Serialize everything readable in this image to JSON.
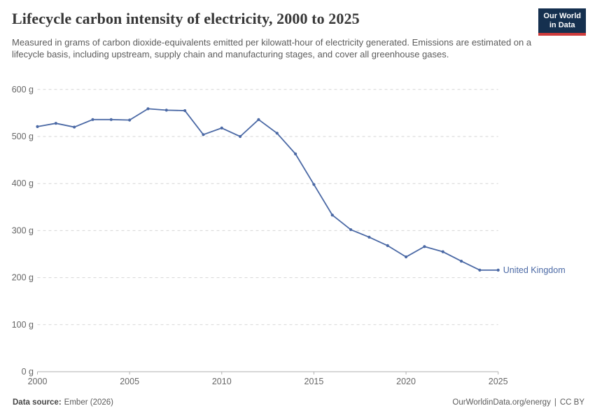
{
  "header": {
    "title": "Lifecycle carbon intensity of electricity, 2000 to 2025",
    "subtitle": "Measured in grams of carbon dioxide-equivalents emitted per kilowatt-hour of electricity generated. Emissions are estimated on a lifecycle basis, including upstream, supply chain and manufacturing stages, and cover all greenhouse gases.",
    "logo_line1": "Our World",
    "logo_line2": "in Data",
    "logo_bg_color": "#15304f",
    "logo_accent_color": "#ce3b3b"
  },
  "chart_data": {
    "type": "line",
    "title": "Lifecycle carbon intensity of electricity, 2000 to 2025",
    "xlabel": "",
    "ylabel": "",
    "xlim": [
      2000,
      2025
    ],
    "ylim": [
      0,
      600
    ],
    "x_ticks": [
      2000,
      2005,
      2010,
      2015,
      2020,
      2025
    ],
    "y_ticks": [
      0,
      100,
      200,
      300,
      400,
      500,
      600
    ],
    "y_tick_suffix": " g",
    "grid": "horizontal-dashed",
    "legend_position": "end-of-line-label",
    "colors": {
      "grid": "#d6d6d6",
      "axis": "#afafaf",
      "tick_text": "#666666"
    },
    "x": [
      2000,
      2001,
      2002,
      2003,
      2004,
      2005,
      2006,
      2007,
      2008,
      2009,
      2010,
      2011,
      2012,
      2013,
      2014,
      2015,
      2016,
      2017,
      2018,
      2019,
      2020,
      2021,
      2022,
      2023,
      2024,
      2025
    ],
    "series": [
      {
        "name": "United Kingdom",
        "color": "#4B69A5",
        "values": [
          521,
          528,
          520,
          536,
          536,
          535,
          559,
          556,
          555,
          504,
          518,
          500,
          536,
          507,
          463,
          398,
          333,
          302,
          286,
          268,
          244,
          266,
          255,
          235,
          216,
          216
        ]
      }
    ]
  },
  "footer": {
    "datasource_label": "Data source:",
    "datasource_value": "Ember (2026)",
    "url": "OurWorldinData.org/energy",
    "divider": "|",
    "license": "CC BY"
  }
}
